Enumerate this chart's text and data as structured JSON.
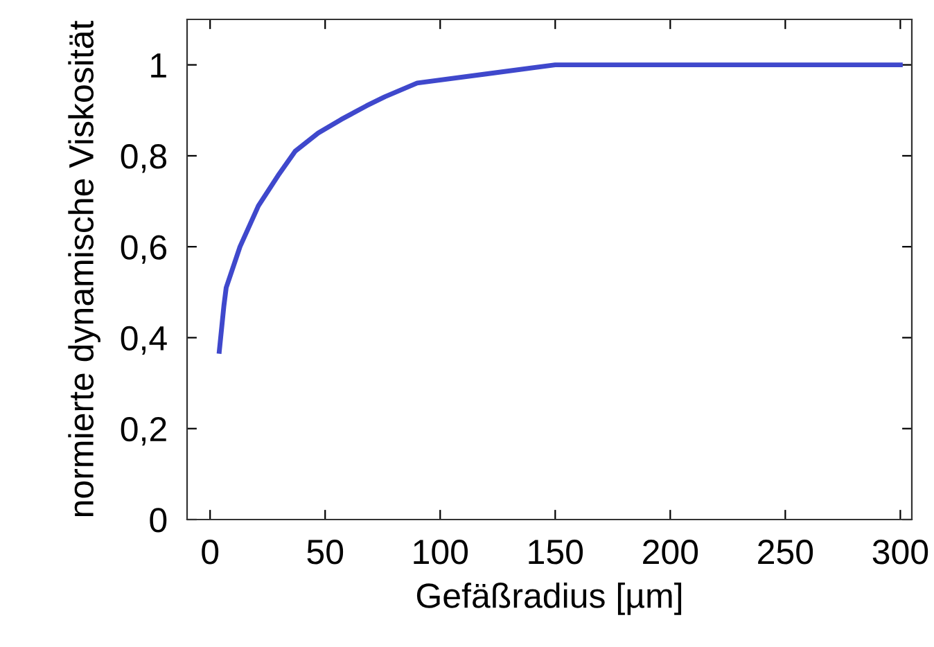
{
  "chart_data": {
    "type": "line",
    "xlabel": "Gefäßradius [µm]",
    "ylabel": "normierte dynamische Viskosität",
    "x": [
      4,
      6,
      7,
      9,
      13,
      21,
      30,
      37,
      47,
      57,
      68,
      76,
      90,
      120,
      150,
      300
    ],
    "series": [
      {
        "color": "#3f48cc",
        "values": [
          0.37,
          0.47,
          0.51,
          0.54,
          0.6,
          0.69,
          0.76,
          0.81,
          0.85,
          0.88,
          0.91,
          0.93,
          0.96,
          0.98,
          1.0,
          1.0
        ]
      }
    ],
    "xlim": [
      -10,
      305
    ],
    "xticks": [
      0,
      50,
      100,
      150,
      200,
      250,
      300
    ],
    "ylim": [
      0,
      1.1
    ],
    "yticks": [
      {
        "value": 0,
        "label": "0"
      },
      {
        "value": 0.2,
        "label": "0,2"
      },
      {
        "value": 0.4,
        "label": "0,4"
      },
      {
        "value": 0.6,
        "label": "0,6"
      },
      {
        "value": 0.8,
        "label": "0,8"
      },
      {
        "value": 1,
        "label": "1"
      }
    ],
    "grid": false,
    "legend": false
  }
}
